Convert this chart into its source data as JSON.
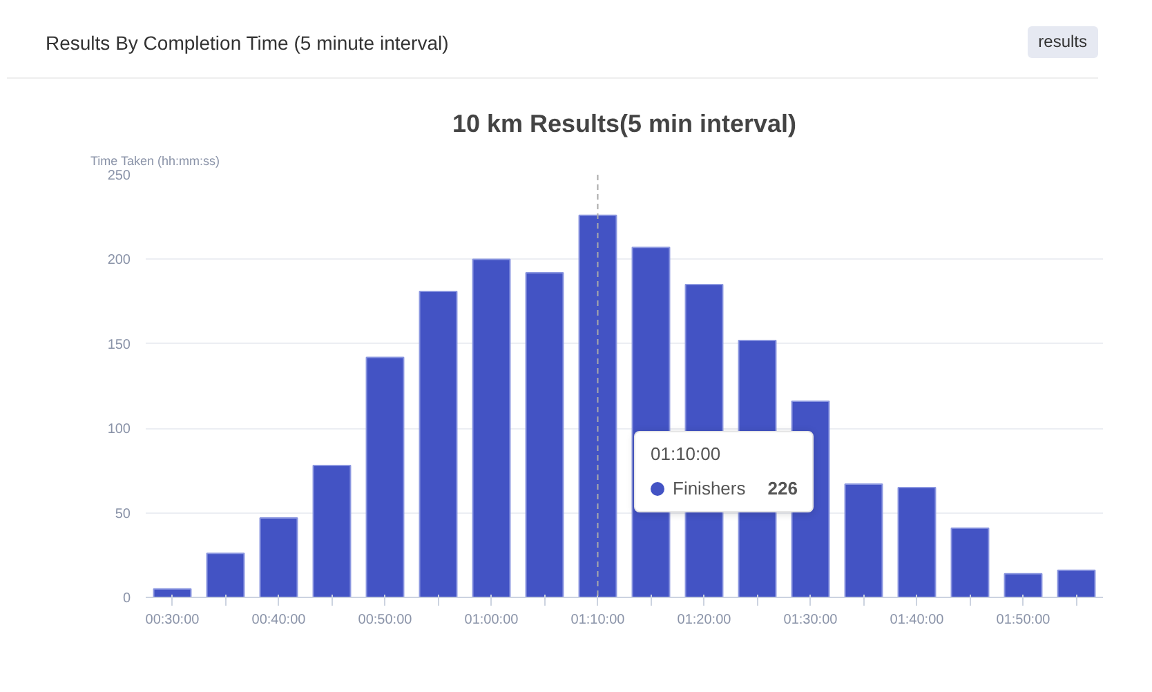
{
  "chart_data": {
    "type": "bar",
    "title": "Results By Completion Time (5 minute interval)",
    "subtitle": "10 km Results(5 min interval)",
    "ylabel": "Time Taken (hh:mm:ss)",
    "annotations": [
      "results",
      "226"
    ],
    "legend_title": "01:10:00",
    "categories": [
      "00:30:00",
      null,
      "00:40:00",
      null,
      "00:50:00",
      null,
      "01:00:00",
      null,
      "01:10:00",
      null,
      "01:20:00",
      null,
      "01:30:00",
      null,
      "01:40:00",
      null,
      "01:50:00",
      null
    ],
    "series": [
      {
        "name": "Finishers",
        "color": "#4353c4",
        "values": [
          5,
          26,
          47,
          78,
          142,
          181,
          200,
          192,
          226,
          207,
          185,
          152,
          116,
          67,
          65,
          41,
          14,
          16
        ]
      }
    ],
    "ylim": [
      0,
      250
    ],
    "yticks": [
      0,
      50,
      100,
      150,
      200,
      250
    ],
    "grid": "y",
    "legend": "bottom",
    "ref_lines": [
      {
        "axis": "x",
        "value": "01:10:00",
        "color": "#aaaaaa",
        "line_style": "dashed"
      }
    ]
  }
}
